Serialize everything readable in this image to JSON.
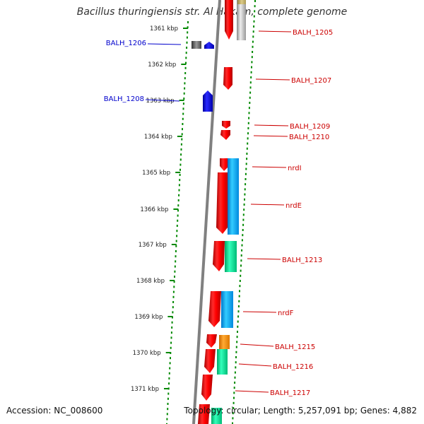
{
  "title": "Bacillus thuringiensis str. Al Hakam, complete genome",
  "footer": {
    "accession": "Accession: NC_008600",
    "topology": "Topology: circular; Length: 5,257,091 bp; Genes: 4,882"
  },
  "ruler_ticks": [
    "1361 kbp",
    "1362 kbp",
    "1363 kbp",
    "1364 kbp",
    "1365 kbp",
    "1366 kbp",
    "1367 kbp",
    "1368 kbp",
    "1369 kbp",
    "1370 kbp",
    "1371 kbp"
  ],
  "colors": {
    "forward_label": "#cc0000",
    "reverse_label": "#0000cc",
    "forward_gene": "#ff0000",
    "reverse_gene": "#0000ff",
    "ruler_dots": "#008800",
    "backbone": "#808080",
    "cog_blue": "#00aaff",
    "cog_green": "#00ee99",
    "cog_orange": "#ff8800"
  },
  "genes": {
    "forward": [
      "BALH_1205",
      "BALH_1207",
      "BALH_1209",
      "BALH_1210",
      "nrdI",
      "nrdE",
      "BALH_1213",
      "nrdF",
      "BALH_1215",
      "BALH_1216",
      "BALH_1217"
    ],
    "reverse": [
      "BALH_1206",
      "BALH_1208"
    ]
  }
}
